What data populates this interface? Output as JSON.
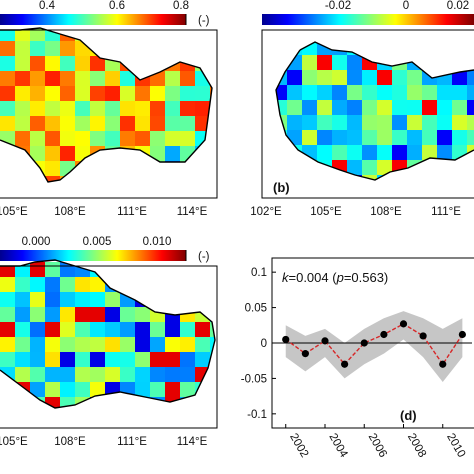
{
  "colorbars": {
    "a": {
      "ticks": [
        "0.4",
        "0.6",
        "0.8"
      ],
      "unit": "(-)"
    },
    "b": {
      "ticks": [
        "-0.02",
        "0",
        "0.02"
      ]
    },
    "c": {
      "ticks": [
        "0.000",
        "0.005",
        "0.010"
      ],
      "unit": "(-)"
    }
  },
  "panels": {
    "a": {
      "xticks": [
        "105°E",
        "108°E",
        "111°E",
        "114°E"
      ]
    },
    "b": {
      "label": "(b)",
      "xticks": [
        "102°E",
        "105°E",
        "108°E",
        "111°E"
      ]
    },
    "c": {
      "xticks": [
        "105°E",
        "108°E",
        "111°E",
        "114°E"
      ]
    },
    "d": {
      "label": "(d)",
      "annotation_k": "k",
      "annotation_rest": "=0.004 (",
      "annotation_p": "p",
      "annotation_end": "=0.563)"
    }
  },
  "chart_data": {
    "type": "line",
    "x": [
      2002,
      2003,
      2004,
      2005,
      2006,
      2007,
      2008,
      2009,
      2010,
      2011
    ],
    "series": [
      {
        "values": [
          0.005,
          -0.015,
          0.003,
          -0.03,
          0.0,
          0.012,
          0.027,
          0.01,
          -0.03,
          0.012
        ]
      }
    ],
    "band_upper": [
      0.025,
      0.01,
      0.02,
      0.0,
      0.02,
      0.035,
      0.045,
      0.035,
      0.02,
      0.035
    ],
    "band_lower": [
      -0.02,
      -0.04,
      -0.02,
      -0.05,
      -0.03,
      -0.015,
      0.005,
      -0.02,
      -0.055,
      -0.02
    ],
    "xticks": [
      "2002",
      "2004",
      "2006",
      "2008",
      "2010"
    ],
    "yticks": [
      "0.1",
      "0.05",
      "0",
      "-0.05",
      "-0.1"
    ],
    "ylim": [
      -0.12,
      0.12
    ],
    "xlim": [
      2001.3,
      2012
    ],
    "colors": {
      "points": "#000000",
      "fit": "#d62728",
      "band": "#b8b8b8"
    }
  }
}
